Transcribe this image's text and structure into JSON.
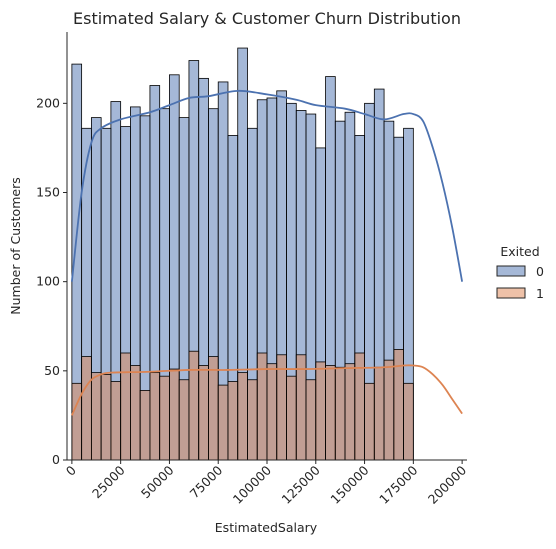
{
  "chart_data": {
    "type": "bar",
    "subtype": "stacked-histogram-with-kde",
    "title": "Estimated Salary & Customer Churn Distribution",
    "xlabel": "EstimatedSalary",
    "ylabel": "Number of Customers",
    "xlim": [
      -2500,
      202500
    ],
    "ylim": [
      0,
      240
    ],
    "bin_width": 5000,
    "bin_start": 0,
    "x_ticks": [
      0,
      25000,
      50000,
      75000,
      100000,
      125000,
      150000,
      175000,
      200000
    ],
    "x_tick_labels": [
      "0",
      "25000",
      "50000",
      "75000",
      "100000",
      "125000",
      "150000",
      "175000",
      "200000"
    ],
    "y_ticks": [
      0,
      50,
      100,
      150,
      200
    ],
    "y_tick_labels": [
      "0",
      "50",
      "100",
      "150",
      "200"
    ],
    "x_tick_rotation": 45,
    "legend": {
      "title": "Exited",
      "placement": "right",
      "entries": [
        "0",
        "1"
      ]
    },
    "series": [
      {
        "name": "0",
        "color": "#4c72b0",
        "values": [
          222,
          186,
          192,
          186,
          201,
          187,
          198,
          193,
          210,
          197,
          216,
          192,
          224,
          214,
          197,
          212,
          182,
          231,
          186,
          202,
          203,
          207,
          200,
          196,
          194,
          175,
          215,
          190,
          195,
          182,
          200,
          208,
          190,
          181,
          186
        ]
      },
      {
        "name": "1",
        "color": "#dd8452",
        "values": [
          43,
          58,
          49,
          48,
          44,
          60,
          53,
          39,
          49,
          47,
          51,
          45,
          61,
          53,
          58,
          42,
          44,
          49,
          45,
          60,
          54,
          59,
          47,
          59,
          45,
          55,
          53,
          52,
          54,
          60,
          43,
          52,
          56,
          62,
          43
        ]
      }
    ],
    "kde": [
      {
        "name": "0",
        "color": "#4c72b0",
        "x": [
          0,
          5000,
          10000,
          15000,
          25000,
          40000,
          50000,
          60000,
          70000,
          85000,
          100000,
          115000,
          125000,
          140000,
          150000,
          160000,
          170000,
          175000,
          180000,
          185000,
          190000,
          195000,
          200000
        ],
        "y": [
          100,
          150,
          178,
          186,
          191,
          195,
          199,
          203,
          204,
          207,
          205,
          202,
          199,
          197,
          194,
          191,
          194,
          194,
          190,
          175,
          155,
          130,
          100
        ]
      },
      {
        "name": "1",
        "color": "#dd8452",
        "x": [
          0,
          5000,
          10000,
          15000,
          20000,
          40000,
          60000,
          80000,
          100000,
          120000,
          140000,
          160000,
          170000,
          175000,
          180000,
          185000,
          190000,
          195000,
          200000
        ],
        "y": [
          25,
          37,
          45,
          48,
          49,
          49.5,
          50.5,
          50.5,
          51,
          51,
          51.5,
          52,
          53,
          53,
          52,
          48,
          42,
          34,
          26
        ]
      }
    ]
  }
}
